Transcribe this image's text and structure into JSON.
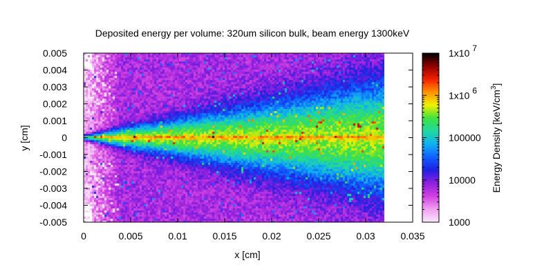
{
  "chart_data": {
    "type": "heatmap",
    "title": "Deposited energy per volume: 320um silicon bulk, beam energy 1300keV",
    "xlabel": "x [cm]",
    "ylabel": "y [cm]",
    "xlim": [
      0,
      0.035
    ],
    "ylim": [
      -0.005,
      0.005
    ],
    "x_ticks": [
      0,
      0.005,
      0.01,
      0.015,
      0.02,
      0.025,
      0.03,
      0.035
    ],
    "x_tick_labels": [
      "0",
      "0.005",
      "0.01",
      "0.015",
      "0.02",
      "0.025",
      "0.03",
      "0.035"
    ],
    "y_ticks": [
      0.005,
      0.004,
      0.003,
      0.002,
      0.001,
      0,
      -0.001,
      -0.002,
      -0.003,
      -0.004,
      -0.005
    ],
    "y_tick_labels": [
      "0.005",
      "0.004",
      "0.003",
      "0.002",
      "0.001",
      "0",
      "-0.001",
      "-0.002",
      "-0.003",
      "-0.004",
      "-0.005"
    ],
    "data_x_extent": [
      0,
      0.032
    ],
    "colorbar": {
      "label_main": "Energy Density [keV/cm",
      "label_exp": "3",
      "label_close": "]",
      "scale": "log",
      "range": [
        1000,
        10000000
      ],
      "ticks": [
        {
          "value": 10000000,
          "base": "1x10",
          "exp": "7"
        },
        {
          "value": 1000000,
          "base": "1x10",
          "exp": "6"
        },
        {
          "value": 100000,
          "base": "100000",
          "exp": ""
        },
        {
          "value": 10000,
          "base": "10000",
          "exp": ""
        },
        {
          "value": 1000,
          "base": "1000",
          "exp": ""
        }
      ],
      "colors": [
        "#fbe6fb",
        "#f0a0f0",
        "#d040e0",
        "#9020e0",
        "#2020e0",
        "#1060ff",
        "#10b0f0",
        "#20d8a0",
        "#40e040",
        "#f0f000",
        "#ff9000",
        "#f02000",
        "#900000",
        "#000000"
      ]
    },
    "grid": false,
    "legend": "colorbar-right"
  }
}
